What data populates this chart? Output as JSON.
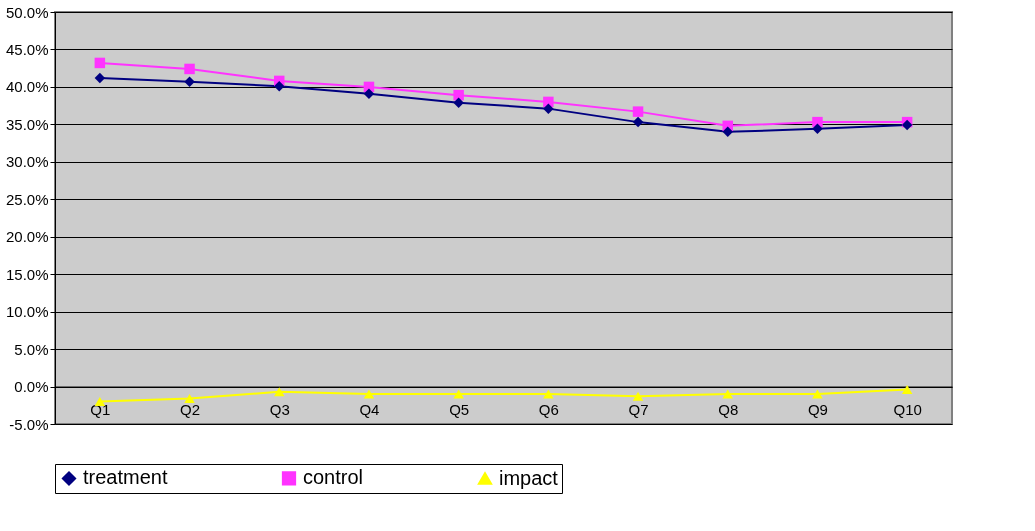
{
  "chart_data": {
    "type": "line",
    "categories": [
      "Q1",
      "Q2",
      "Q3",
      "Q4",
      "Q5",
      "Q6",
      "Q7",
      "Q8",
      "Q9",
      "Q10"
    ],
    "series": [
      {
        "name": "treatment",
        "color": "#000080",
        "marker": "diamond",
        "values": [
          41.2,
          40.7,
          40.1,
          39.1,
          37.9,
          37.1,
          35.3,
          34.0,
          34.4,
          34.9
        ]
      },
      {
        "name": "control",
        "color": "#ff33ff",
        "marker": "square",
        "values": [
          43.2,
          42.4,
          40.8,
          40.0,
          38.9,
          38.0,
          36.7,
          34.8,
          35.3,
          35.3
        ]
      },
      {
        "name": "impact",
        "color": "#ffff00",
        "marker": "triangle",
        "values": [
          -2.0,
          -1.6,
          -0.7,
          -1.0,
          -1.0,
          -1.0,
          -1.3,
          -1.0,
          -1.0,
          -0.4
        ]
      }
    ],
    "ylim": [
      -5,
      50
    ],
    "yticks": [
      {
        "value": -5,
        "label": "-5.0%"
      },
      {
        "value": 0,
        "label": "0.0%"
      },
      {
        "value": 5,
        "label": "5.0%"
      },
      {
        "value": 10,
        "label": "10.0%"
      },
      {
        "value": 15,
        "label": "15.0%"
      },
      {
        "value": 20,
        "label": "20.0%"
      },
      {
        "value": 25,
        "label": "25.0%"
      },
      {
        "value": 30,
        "label": "30.0%"
      },
      {
        "value": 35,
        "label": "35.0%"
      },
      {
        "value": 40,
        "label": "40.0%"
      },
      {
        "value": 45,
        "label": "45.0%"
      },
      {
        "value": 50,
        "label": "50.0%"
      }
    ],
    "grid": "y",
    "legend": "bottom",
    "line_style": "solid"
  }
}
